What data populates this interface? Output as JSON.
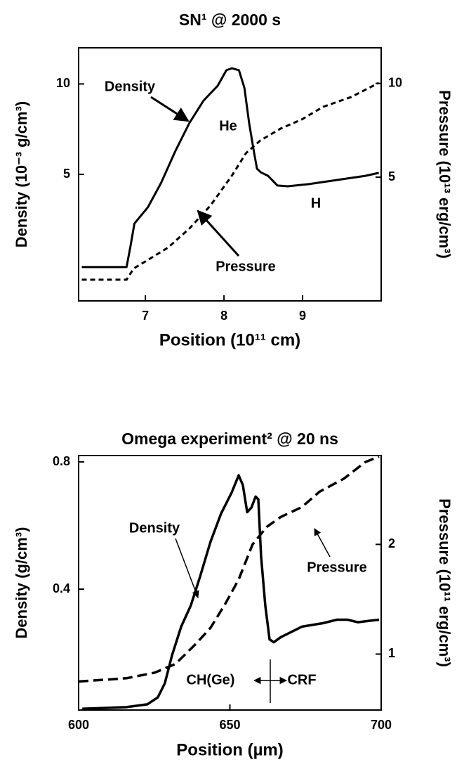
{
  "chart_data": [
    {
      "type": "line",
      "title": "SN¹ @ 2000 s",
      "x_label": "Position (10¹¹ cm)",
      "y_label": "Density (10⁻³ g/cm³)",
      "y2_label": "Pressure (10¹³ erg/cm³)",
      "xlim": [
        6.15,
        10
      ],
      "xticks": [
        7,
        8,
        9
      ],
      "ylim": [
        -2,
        12
      ],
      "yticks": [
        5,
        10
      ],
      "y2lim": [
        -1.6,
        11.9
      ],
      "y2ticks": [
        5,
        10
      ],
      "annotations": [
        "He",
        "H"
      ],
      "series": [
        {
          "name": "Density",
          "color": "#000000",
          "line_style": "solid",
          "x": [
            6.19,
            6.76,
            6.81,
            6.86,
            7.03,
            7.2,
            7.38,
            7.56,
            7.74,
            7.92,
            8.03,
            8.1,
            8.19,
            8.26,
            8.32,
            8.38,
            8.42,
            8.47,
            8.56,
            8.68,
            8.81,
            9.08,
            9.44,
            9.8,
            9.97
          ],
          "values": [
            -0.13,
            -0.13,
            1.03,
            2.28,
            3.17,
            4.53,
            6.28,
            7.84,
            9.08,
            9.9,
            10.76,
            10.87,
            10.76,
            9.78,
            7.84,
            6.28,
            5.31,
            5.11,
            4.92,
            4.38,
            4.34,
            4.46,
            4.69,
            4.92,
            5.08
          ]
        },
        {
          "name": "Pressure",
          "color": "#000000",
          "line_style": "dashed",
          "axis": "y2",
          "x": [
            6.19,
            6.76,
            6.85,
            7.03,
            7.29,
            7.56,
            7.83,
            8.1,
            8.28,
            8.46,
            8.72,
            8.99,
            9.26,
            9.62,
            9.97
          ],
          "values": [
            -0.47,
            -0.47,
            0.13,
            0.58,
            1.25,
            2.26,
            3.5,
            5.08,
            6.28,
            6.95,
            7.59,
            8.08,
            8.75,
            9.28,
            10.03
          ]
        }
      ]
    },
    {
      "type": "line",
      "title": "Omega experiment² @ 20 ns",
      "x_label": "Position (µm)",
      "y_label": "Density (g/cm³)",
      "y2_label": "Pressure (10¹¹ erg/cm³)",
      "xlim": [
        600,
        700
      ],
      "xticks": [
        600,
        650,
        700
      ],
      "ylim": [
        0.02,
        0.82
      ],
      "yticks": [
        0.4,
        0.8
      ],
      "y2lim": [
        0.49,
        2.81
      ],
      "y2ticks": [
        1,
        2
      ],
      "annotations": [
        "CH(Ge)",
        "CRF"
      ],
      "series": [
        {
          "name": "Density",
          "color": "#000000",
          "line_style": "solid",
          "x": [
            601.2,
            615.8,
            622.7,
            626.2,
            628.5,
            630.9,
            633.9,
            637.1,
            640.1,
            643.6,
            647.1,
            650.6,
            652.9,
            654.3,
            655.7,
            657.1,
            658.5,
            659.4,
            660.3,
            661.7,
            663.1,
            664.5,
            666.8,
            673.8,
            680.7,
            685.4,
            688.9,
            692.3,
            695.8,
            699.3
          ],
          "values": [
            0.024,
            0.029,
            0.038,
            0.06,
            0.104,
            0.193,
            0.282,
            0.349,
            0.438,
            0.549,
            0.638,
            0.704,
            0.758,
            0.727,
            0.642,
            0.656,
            0.691,
            0.682,
            0.504,
            0.349,
            0.242,
            0.233,
            0.249,
            0.282,
            0.293,
            0.304,
            0.304,
            0.296,
            0.3,
            0.304
          ]
        },
        {
          "name": "Pressure",
          "color": "#000000",
          "line_style": "dashed",
          "axis": "y2",
          "x": [
            600,
            615.8,
            625.1,
            632,
            639,
            643.6,
            648.3,
            652.9,
            657.5,
            662.2,
            666.8,
            673.8,
            679.6,
            687.7,
            694.7,
            699.3
          ],
          "values": [
            0.75,
            0.78,
            0.83,
            0.91,
            1.1,
            1.24,
            1.45,
            1.68,
            2.0,
            2.16,
            2.25,
            2.34,
            2.48,
            2.6,
            2.75,
            2.8
          ]
        }
      ]
    }
  ]
}
